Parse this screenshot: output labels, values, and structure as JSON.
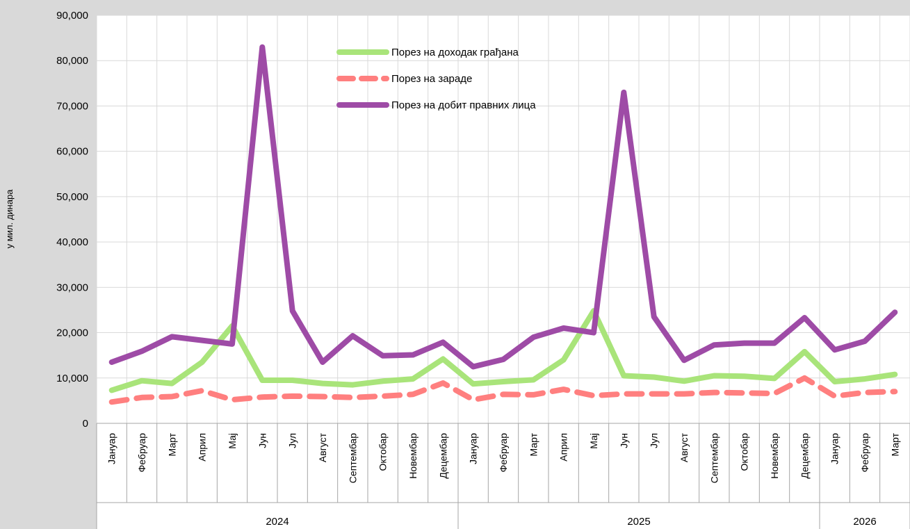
{
  "chart_data": {
    "type": "line",
    "ylabel": "у мил. динара",
    "ylim": [
      0,
      90000
    ],
    "yticks": [
      "0",
      "10,000",
      "20,000",
      "30,000",
      "40,000",
      "50,000",
      "60,000",
      "70,000",
      "80,000",
      "90,000"
    ],
    "grid": true,
    "legend_position": "top-center",
    "categories": [
      "Јануар",
      "Фебруар",
      "Март",
      "Април",
      "Мај",
      "Јун",
      "Јул",
      "Август",
      "Септембар",
      "Октобар",
      "Новембар",
      "Децембар",
      "Јануар",
      "Фебруар",
      "Март",
      "Април",
      "Мај",
      "Јун",
      "Јул",
      "Август",
      "Септембар",
      "Октобар",
      "Новембар",
      "Децембар",
      "Јануар",
      "Фебруар",
      "Март"
    ],
    "groups": [
      {
        "label": "2024",
        "count": 12
      },
      {
        "label": "2025",
        "count": 12
      },
      {
        "label": "2026",
        "count": 3
      }
    ],
    "series": [
      {
        "name": "Порез на доходак грађана",
        "color": "#a9e47a",
        "style": "solid",
        "values": [
          7300,
          9400,
          8800,
          13500,
          21500,
          9500,
          9500,
          8800,
          8500,
          9300,
          9800,
          14200,
          8700,
          9200,
          9600,
          14000,
          24800,
          10500,
          10200,
          9300,
          10500,
          10400,
          9900,
          15800,
          9200,
          9800,
          10800
        ]
      },
      {
        "name": "Порез на зараде",
        "color": "#ff7f7f",
        "style": "dashed",
        "values": [
          4700,
          5700,
          5900,
          7200,
          5200,
          5800,
          6000,
          5900,
          5700,
          6000,
          6400,
          8900,
          5200,
          6400,
          6300,
          7500,
          6100,
          6500,
          6500,
          6500,
          6800,
          6700,
          6600,
          10000,
          6000,
          6800,
          7000
        ]
      },
      {
        "name": "Порез на добит правних лица",
        "color": "#9e4ba6",
        "style": "solid",
        "values": [
          13500,
          15900,
          19100,
          18300,
          17500,
          83000,
          24800,
          13500,
          19300,
          14900,
          15100,
          17900,
          12500,
          14100,
          19000,
          21000,
          20000,
          73000,
          23500,
          13900,
          17300,
          17700,
          17700,
          23300,
          16200,
          18100,
          24500
        ]
      }
    ]
  }
}
